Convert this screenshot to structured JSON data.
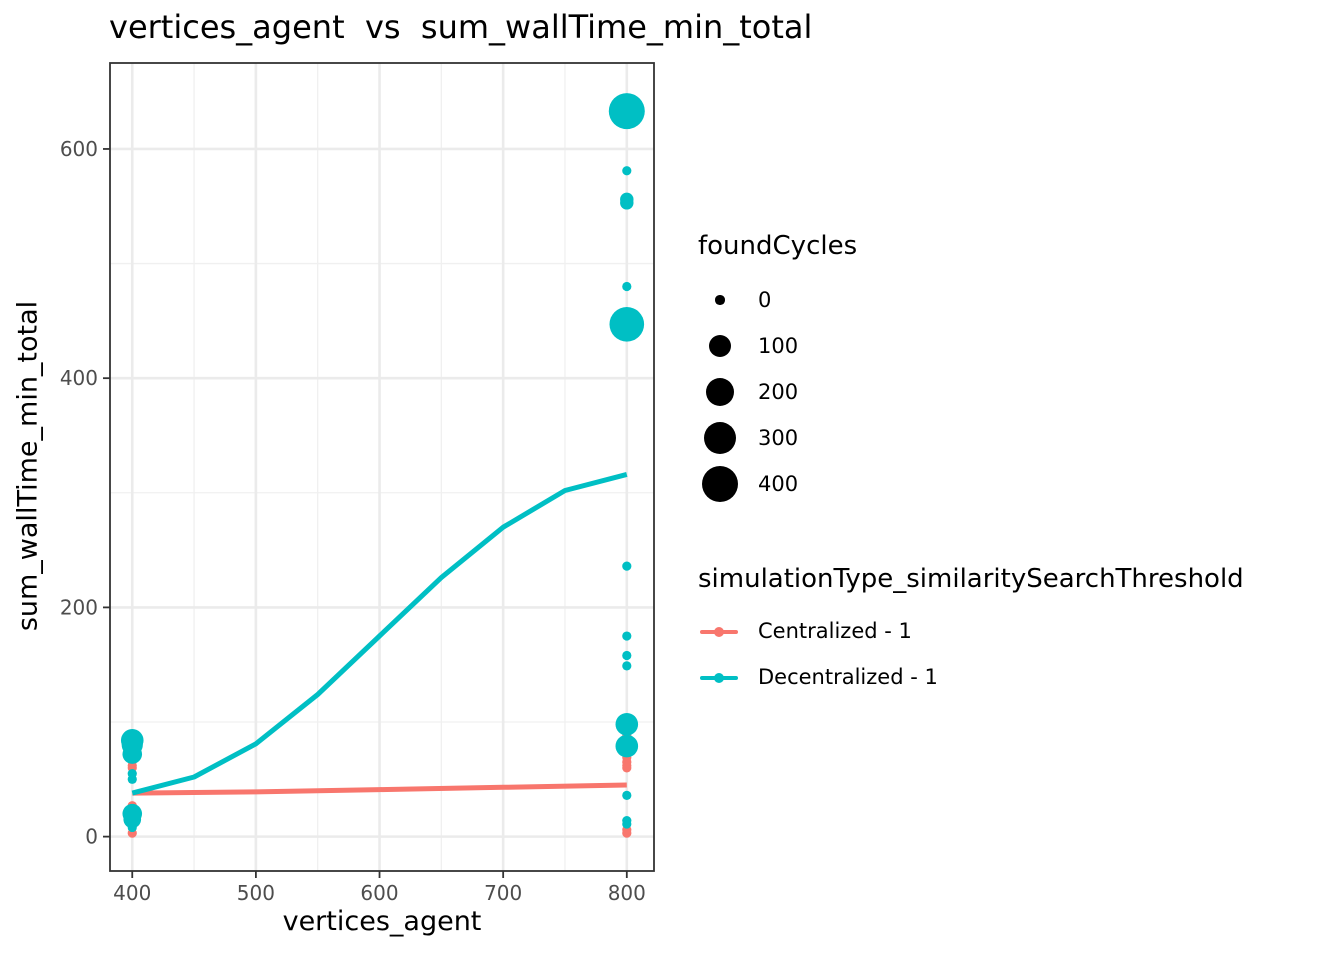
{
  "chart_data": {
    "type": "scatter",
    "title": "vertices_agent  vs  sum_wallTime_min_total",
    "xlabel": "vertices_agent",
    "ylabel": "sum_wallTime_min_total",
    "xlim": [
      382,
      822
    ],
    "ylim": [
      -30,
      675
    ],
    "x_ticks": [
      400,
      500,
      600,
      700,
      800
    ],
    "y_ticks": [
      0,
      200,
      400,
      600
    ],
    "grid": true,
    "size_legend": {
      "title": "foundCycles",
      "levels": [
        {
          "label": "0",
          "value": 0
        },
        {
          "label": "100",
          "value": 100
        },
        {
          "label": "200",
          "value": 200
        },
        {
          "label": "300",
          "value": 300
        },
        {
          "label": "400",
          "value": 400
        }
      ]
    },
    "color_legend": {
      "title": "simulationType_similaritySearchThreshold"
    },
    "series": [
      {
        "name": "Centralized - 1",
        "color": "#F8766D",
        "points": [
          {
            "x": 400,
            "y": 66,
            "size": 0
          },
          {
            "x": 400,
            "y": 62,
            "size": 0
          },
          {
            "x": 400,
            "y": 60,
            "size": 0
          },
          {
            "x": 400,
            "y": 27,
            "size": 0
          },
          {
            "x": 400,
            "y": 24,
            "size": 0
          },
          {
            "x": 400,
            "y": 20,
            "size": 0
          },
          {
            "x": 400,
            "y": 15,
            "size": 0
          },
          {
            "x": 400,
            "y": 3,
            "size": 0
          },
          {
            "x": 800,
            "y": 88,
            "size": 0
          },
          {
            "x": 800,
            "y": 76,
            "size": 0
          },
          {
            "x": 800,
            "y": 73,
            "size": 0
          },
          {
            "x": 800,
            "y": 69,
            "size": 0
          },
          {
            "x": 800,
            "y": 65,
            "size": 0
          },
          {
            "x": 800,
            "y": 62,
            "size": 0
          },
          {
            "x": 800,
            "y": 60,
            "size": 0
          },
          {
            "x": 800,
            "y": 6,
            "size": 0
          },
          {
            "x": 800,
            "y": 3,
            "size": 0
          }
        ],
        "trend": [
          {
            "x": 400,
            "y": 38
          },
          {
            "x": 500,
            "y": 39
          },
          {
            "x": 600,
            "y": 41
          },
          {
            "x": 700,
            "y": 43
          },
          {
            "x": 800,
            "y": 45
          }
        ]
      },
      {
        "name": "Decentralized - 1",
        "color": "#00BFC4",
        "points": [
          {
            "x": 400,
            "y": 84,
            "size": 100
          },
          {
            "x": 400,
            "y": 80,
            "size": 80
          },
          {
            "x": 400,
            "y": 72,
            "size": 60
          },
          {
            "x": 400,
            "y": 55,
            "size": 0
          },
          {
            "x": 400,
            "y": 50,
            "size": 0
          },
          {
            "x": 400,
            "y": 20,
            "size": 60
          },
          {
            "x": 400,
            "y": 15,
            "size": 40
          },
          {
            "x": 400,
            "y": 8,
            "size": 0
          },
          {
            "x": 800,
            "y": 633,
            "size": 400
          },
          {
            "x": 800,
            "y": 581,
            "size": 0
          },
          {
            "x": 800,
            "y": 556,
            "size": 10
          },
          {
            "x": 800,
            "y": 553,
            "size": 10
          },
          {
            "x": 800,
            "y": 480,
            "size": 0
          },
          {
            "x": 800,
            "y": 447,
            "size": 360
          },
          {
            "x": 800,
            "y": 236,
            "size": 0
          },
          {
            "x": 800,
            "y": 175,
            "size": 0
          },
          {
            "x": 800,
            "y": 158,
            "size": 0
          },
          {
            "x": 800,
            "y": 149,
            "size": 0
          },
          {
            "x": 800,
            "y": 98,
            "size": 100
          },
          {
            "x": 800,
            "y": 79,
            "size": 100
          },
          {
            "x": 800,
            "y": 36,
            "size": 0
          },
          {
            "x": 800,
            "y": 14,
            "size": 0
          },
          {
            "x": 800,
            "y": 11,
            "size": 0
          }
        ],
        "trend": [
          {
            "x": 400,
            "y": 38
          },
          {
            "x": 450,
            "y": 52
          },
          {
            "x": 500,
            "y": 81
          },
          {
            "x": 550,
            "y": 124
          },
          {
            "x": 600,
            "y": 175
          },
          {
            "x": 650,
            "y": 226
          },
          {
            "x": 700,
            "y": 270
          },
          {
            "x": 750,
            "y": 302
          },
          {
            "x": 800,
            "y": 316
          }
        ]
      }
    ]
  }
}
